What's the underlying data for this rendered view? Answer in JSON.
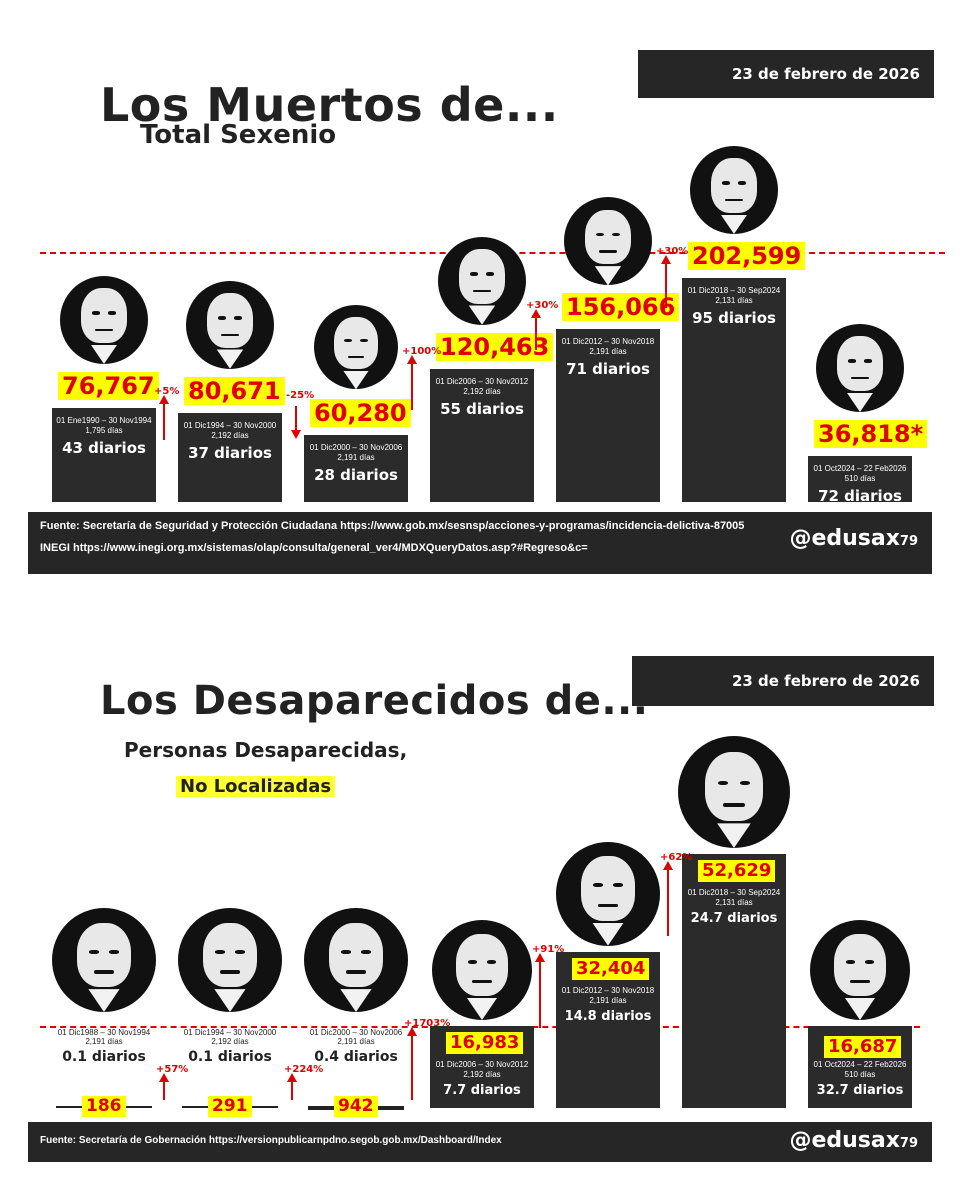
{
  "chart_data": [
    {
      "type": "bar",
      "title": "Los Muertos de...",
      "subtitle": "Total Sexenio",
      "date": "23 de febrero de 2026",
      "categories": [
        "01 Ene1990 – 30 Nov1994",
        "01 Dic1994 – 30 Nov2000",
        "01 Dic2000 – 30 Nov2006",
        "01 Dic2006 – 30 Nov2012",
        "01 Dic2012 – 30 Nov2018",
        "01 Dic2018 – 30 Sep2024",
        "01 Oct2024 – 22 Feb2026"
      ],
      "values": [
        76767,
        80671,
        60280,
        120463,
        156066,
        202599,
        36818
      ],
      "value_labels": [
        "76,767",
        "80,671",
        "60,280",
        "120,463",
        "156,066",
        "202,599",
        "36,818*"
      ],
      "days": [
        "1,795 días",
        "2,192 días",
        "2,191 días",
        "2,192 días",
        "2,191 días",
        "2,131 días",
        "510 días"
      ],
      "daily": [
        "43 diarios",
        "37 diarios",
        "28 diarios",
        "55 diarios",
        "71 diarios",
        "95 diarios",
        "72 diarios"
      ],
      "changes": [
        {
          "label": "+5%",
          "dir": "up"
        },
        {
          "label": "-25%",
          "dir": "down"
        },
        {
          "label": "+100%",
          "dir": "up"
        },
        {
          "label": "+30%",
          "dir": "up"
        },
        {
          "label": "+30%",
          "dir": "up"
        }
      ],
      "source": "Fuente: Secretaría de Seguridad y Protección Ciudadana https://www.gob.mx/sesnsp/acciones-y-programas/incidencia-delictiva-87005",
      "source2": "INEGI https://www.inegi.org.mx/sistemas/olap/consulta/general_ver4/MDXQueryDatos.asp?#Regreso&c=",
      "handle": "@edusax",
      "handle_num": "79"
    },
    {
      "type": "bar",
      "title": "Los Desaparecidos de...",
      "subtitle": "Personas Desaparecidas,",
      "subtitle2": "No Localizadas",
      "date": "23 de febrero de 2026",
      "categories": [
        "01 Dic1988 – 30 Nov1994",
        "01 Dic1994 – 30 Nov2000",
        "01 Dic2000 – 30 Nov2006",
        "01 Dic2006 – 30 Nov2012",
        "01 Dic2012 – 30 Nov2018",
        "01 Dic2018 – 30 Sep2024",
        "01 Oct2024 – 22 Feb2026"
      ],
      "values": [
        186,
        291,
        942,
        16983,
        32404,
        52629,
        16687
      ],
      "value_labels": [
        "186",
        "291",
        "942",
        "16,983",
        "32,404",
        "52,629",
        "16,687"
      ],
      "days": [
        "2,191 días",
        "2,192 días",
        "2,191 días",
        "2,192 días",
        "2,191 días",
        "2,131 días",
        "510 días"
      ],
      "daily": [
        "0.1 diarios",
        "0.1 diarios",
        "0.4 diarios",
        "7.7 diarios",
        "14.8 diarios",
        "24.7 diarios",
        "32.7 diarios"
      ],
      "changes": [
        {
          "label": "+57%",
          "dir": "up"
        },
        {
          "label": "+224%",
          "dir": "up"
        },
        {
          "label": "+1703%",
          "dir": "up"
        },
        {
          "label": "+91%",
          "dir": "up"
        },
        {
          "label": "+62%",
          "dir": "up"
        }
      ],
      "source": "Fuente: Secretaría de Gobernación https://versionpublicarnpdno.segob.gob.mx/Dashboard/Index",
      "handle": "@edusax",
      "handle_num": "79"
    }
  ],
  "colors": {
    "bar": "#2b2b2b",
    "highlight": "#ffff00",
    "value_text": "#e00000",
    "arrow": "#e00000",
    "footer": "#262626"
  },
  "icons": [
    "portrait-icon"
  ]
}
